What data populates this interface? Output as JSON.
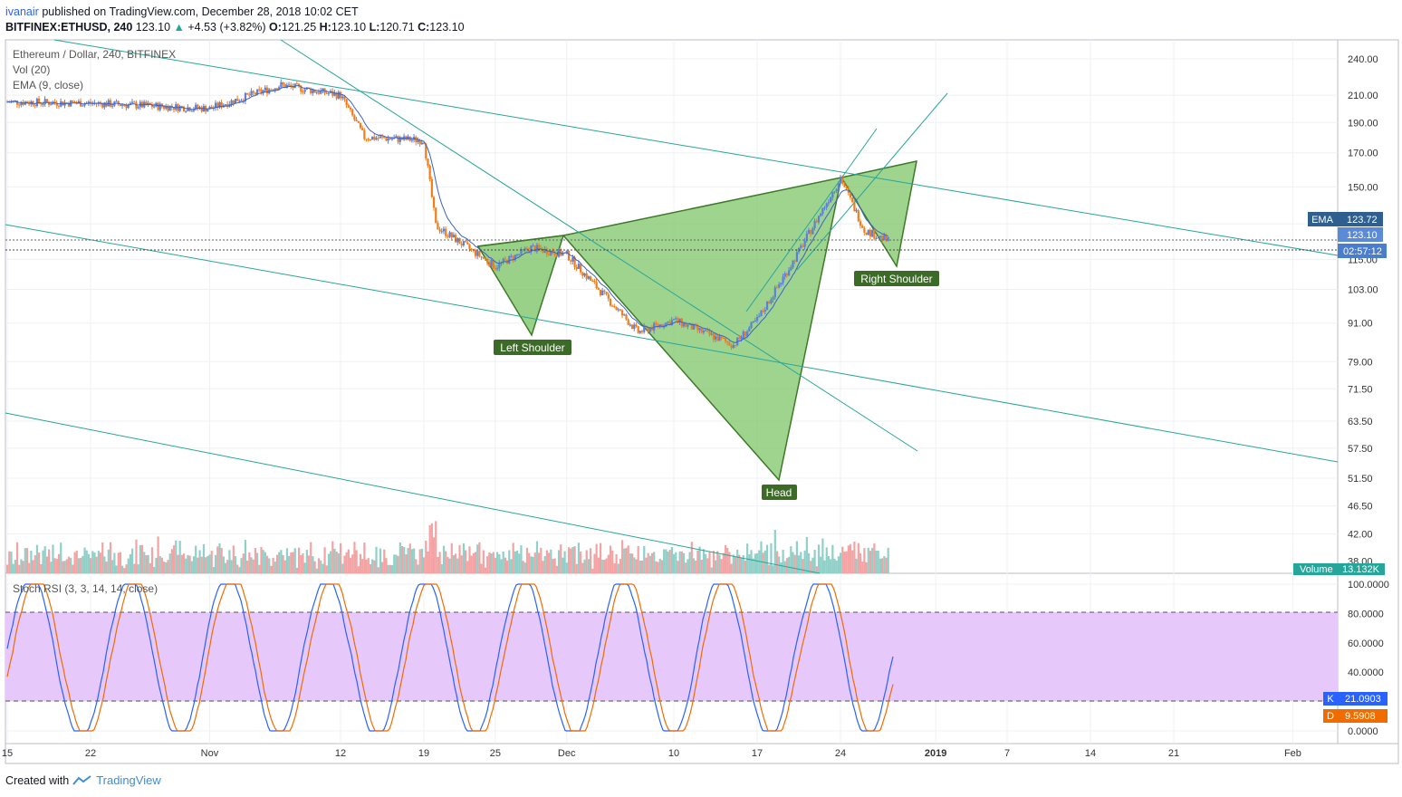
{
  "header": {
    "author": "ivanair",
    "published": "published on TradingView.com, December 28, 2018 10:02 CET",
    "symbol": "BITFINEX:ETHUSD, 240",
    "last": "123.10",
    "change": "+4.53 (+3.82%)",
    "o_label": "O:",
    "o": "121.25",
    "h_label": "H:",
    "h": "123.10",
    "l_label": "L:",
    "l": "120.71",
    "c_label": "C:",
    "c": "123.10"
  },
  "legend": {
    "main": "Ethereum / Dollar, 240, BITFINEX",
    "vol": "Vol (20)",
    "ema": "EMA (9, close)",
    "stoch": "Stoch RSI (3, 3, 14, 14, close)"
  },
  "badges": {
    "ema_label": "EMA",
    "ema_value": "123.72",
    "price": "123.10",
    "countdown": "02:57:12",
    "volume_label": "Volume",
    "volume_value": "13.132K",
    "k_label": "K",
    "k_value": "21.0903",
    "d_label": "D",
    "d_value": "9.5908"
  },
  "annotations": {
    "left_shoulder": "Left Shoulder",
    "head": "Head",
    "right_shoulder": "Right Shoulder"
  },
  "footer": {
    "created": "Created with",
    "brand": "TradingView"
  },
  "colors": {
    "up": "#5b7fdb",
    "down": "#ef7d1a",
    "pattern_fill": "#7fc66a",
    "pattern_stroke": "#3d7a28",
    "trend": "#26a69a",
    "stoch_band": "#e6c8fb",
    "vol_up": "#8fd0c8",
    "vol_down": "#f3a3a3"
  },
  "chart_data": [
    {
      "type": "candlestick",
      "title": "Ethereum / Dollar, 240, BITFINEX",
      "y_axis_scale": "log",
      "y_ticks": [
        240.0,
        210.0,
        190.0,
        170.0,
        150.0,
        131.0,
        115.0,
        103.0,
        91.0,
        79.0,
        71.5,
        63.5,
        57.5,
        51.5,
        46.5,
        42.0,
        38.0
      ],
      "y_tick_labels": [
        "240.00",
        "210.00",
        "190.00",
        "170.00",
        "150.00",
        "",
        "115.00",
        "103.00",
        "91.00",
        "79.00",
        "71.50",
        "63.50",
        "57.50",
        "51.50",
        "46.50",
        "42.00",
        "38.00"
      ],
      "x_tick_labels": [
        "15",
        "22",
        "Nov",
        "12",
        "19",
        "25",
        "Dec",
        "10",
        "17",
        "24",
        "2019",
        "7",
        "14",
        "21",
        "Feb"
      ],
      "approx_close_path": [
        {
          "x": "Oct 15",
          "y": 205
        },
        {
          "x": "Oct 22",
          "y": 204
        },
        {
          "x": "Nov 1",
          "y": 200
        },
        {
          "x": "Nov 7",
          "y": 218
        },
        {
          "x": "Nov 12",
          "y": 210
        },
        {
          "x": "Nov 14",
          "y": 180
        },
        {
          "x": "Nov 19",
          "y": 178
        },
        {
          "x": "Nov 20",
          "y": 130
        },
        {
          "x": "Nov 25",
          "y": 112
        },
        {
          "x": "Nov 28",
          "y": 120
        },
        {
          "x": "Dec 1",
          "y": 117
        },
        {
          "x": "Dec 7",
          "y": 88
        },
        {
          "x": "Dec 10",
          "y": 92
        },
        {
          "x": "Dec 15",
          "y": 84
        },
        {
          "x": "Dec 17",
          "y": 92
        },
        {
          "x": "Dec 20",
          "y": 114
        },
        {
          "x": "Dec 24",
          "y": 155
        },
        {
          "x": "Dec 26",
          "y": 128
        },
        {
          "x": "Dec 28",
          "y": 123.1
        }
      ],
      "last_price": 123.1,
      "ema": 123.72,
      "pattern": "Inverse head and shoulders"
    },
    {
      "type": "bar",
      "title": "Vol (20)",
      "last_value": "13.132K"
    },
    {
      "type": "line",
      "title": "Stoch RSI (3, 3, 14, 14, close)",
      "y_ticks": [
        100,
        80,
        60,
        40,
        20,
        0
      ],
      "y_tick_labels": [
        "100.0000",
        "80.0000",
        "60.0000",
        "40.0000",
        "",
        "0.0000"
      ],
      "band": [
        20,
        80
      ],
      "series": [
        {
          "name": "K",
          "last": 21.0903
        },
        {
          "name": "D",
          "last": 9.5908
        }
      ]
    }
  ]
}
